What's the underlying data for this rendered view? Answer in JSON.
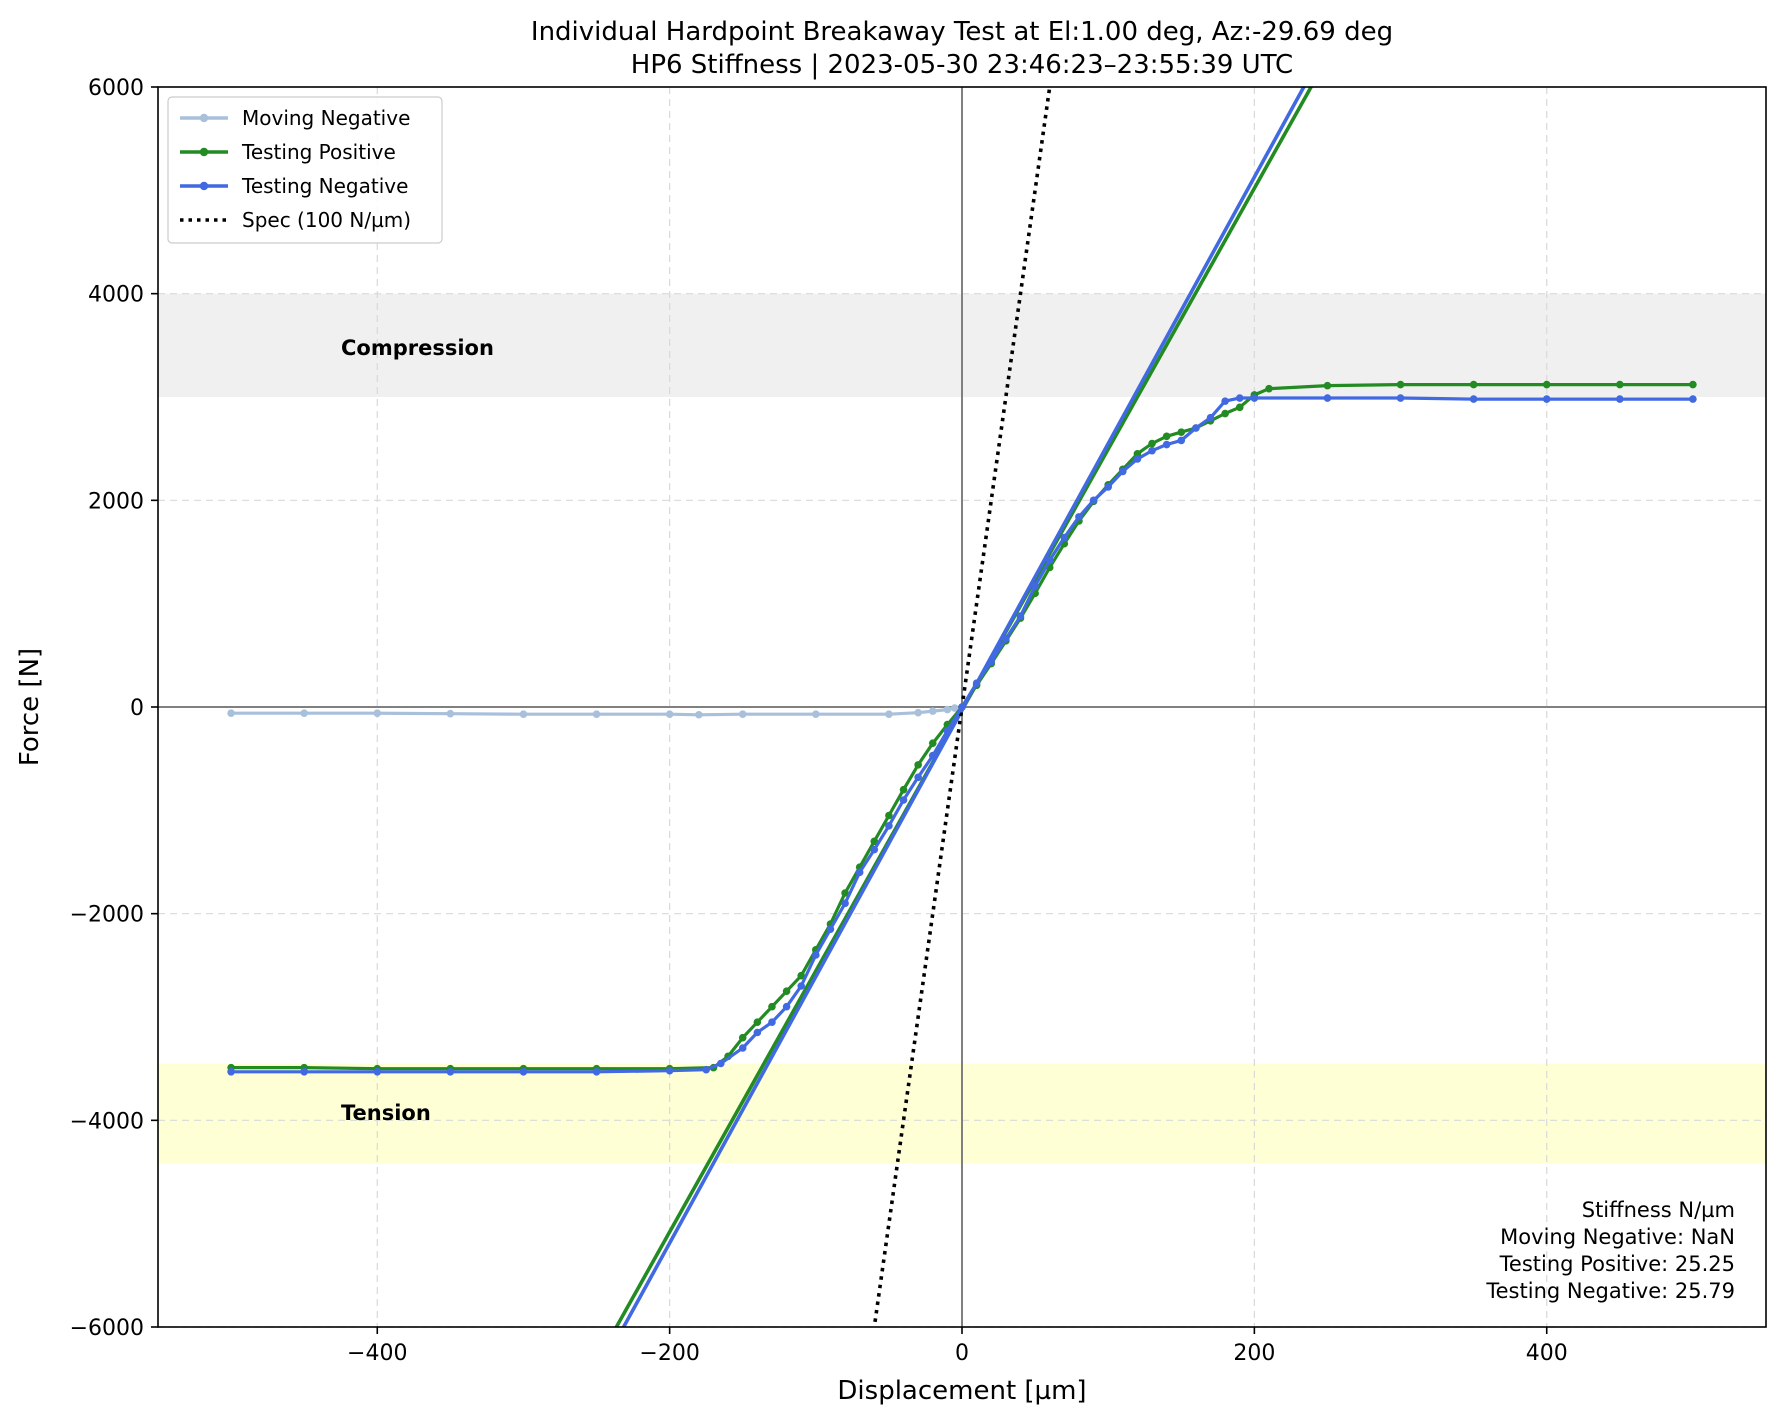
{
  "chart_data": {
    "type": "line",
    "title": "Individual Hardpoint Breakaway Test at El:1.00 deg, Az:-29.69 deg",
    "subtitle": "HP6 Stiffness | 2023-05-30 23:46:23–23:55:39 UTC",
    "xlabel": "Displacement [µm]",
    "ylabel": "Force [N]",
    "xlim": [
      -550,
      550
    ],
    "ylim": [
      -6000,
      6000
    ],
    "xticks": [
      -400,
      -200,
      0,
      200,
      400
    ],
    "yticks": [
      -6000,
      -4000,
      -2000,
      0,
      2000,
      4000,
      6000
    ],
    "xtick_labels": [
      "−400",
      "−200",
      "0",
      "200",
      "400"
    ],
    "ytick_labels": [
      "−6000",
      "−4000",
      "−2000",
      "0",
      "2000",
      "4000",
      "6000"
    ],
    "grid": true,
    "legend_position": "top-left",
    "bands": [
      {
        "label": "Compression",
        "y0": 3000,
        "y1": 4000,
        "color": "#f0f0f0"
      },
      {
        "label": "Tension",
        "y0": -4420,
        "y1": -3450,
        "color": "#ffffd6"
      }
    ],
    "series": [
      {
        "name": "Moving Negative",
        "color": "#a9c0da",
        "x": [
          -500,
          -450,
          -400,
          -350,
          -300,
          -250,
          -200,
          -180,
          -150,
          -100,
          -50,
          -30,
          -20,
          -10,
          -5
        ],
        "y": [
          -60,
          -60,
          -60,
          -65,
          -70,
          -70,
          -70,
          -75,
          -70,
          -70,
          -70,
          -55,
          -40,
          -25,
          -10
        ]
      },
      {
        "name": "Testing Positive",
        "color": "#228b22",
        "x": [
          -500,
          -450,
          -400,
          -350,
          -300,
          -250,
          -200,
          -170,
          -160,
          -150,
          -140,
          -130,
          -120,
          -110,
          -100,
          -90,
          -80,
          -70,
          -60,
          -50,
          -40,
          -30,
          -20,
          -10,
          0,
          10,
          20,
          30,
          40,
          50,
          60,
          70,
          80,
          90,
          100,
          110,
          120,
          130,
          140,
          150,
          160,
          170,
          180,
          190,
          200,
          210,
          250,
          300,
          350,
          400,
          450,
          500
        ],
        "y": [
          -3490,
          -3490,
          -3500,
          -3500,
          -3500,
          -3500,
          -3500,
          -3490,
          -3380,
          -3200,
          -3050,
          -2900,
          -2750,
          -2600,
          -2350,
          -2100,
          -1800,
          -1550,
          -1300,
          -1050,
          -800,
          -560,
          -350,
          -170,
          0,
          210,
          420,
          640,
          860,
          1100,
          1350,
          1580,
          1800,
          1990,
          2150,
          2300,
          2450,
          2550,
          2620,
          2660,
          2700,
          2770,
          2840,
          2900,
          3020,
          3080,
          3110,
          3120,
          3120,
          3120,
          3120,
          3120
        ]
      },
      {
        "name": "Testing Negative",
        "color": "#4169e1",
        "x": [
          -500,
          -450,
          -400,
          -350,
          -300,
          -250,
          -200,
          -175,
          -165,
          -150,
          -140,
          -130,
          -120,
          -110,
          -100,
          -90,
          -80,
          -70,
          -60,
          -50,
          -40,
          -30,
          -20,
          -10,
          0,
          10,
          20,
          30,
          40,
          50,
          60,
          70,
          80,
          90,
          100,
          110,
          120,
          130,
          140,
          150,
          160,
          170,
          180,
          190,
          200,
          250,
          300,
          350,
          400,
          450,
          500
        ],
        "y": [
          -3530,
          -3530,
          -3530,
          -3530,
          -3530,
          -3530,
          -3520,
          -3510,
          -3450,
          -3300,
          -3150,
          -3050,
          -2900,
          -2700,
          -2400,
          -2150,
          -1900,
          -1600,
          -1380,
          -1150,
          -900,
          -680,
          -470,
          -230,
          0,
          230,
          440,
          660,
          880,
          1170,
          1420,
          1640,
          1840,
          2000,
          2130,
          2280,
          2400,
          2480,
          2540,
          2580,
          2700,
          2800,
          2960,
          2990,
          2990,
          2990,
          2990,
          2980,
          2980,
          2980,
          2980
        ]
      }
    ],
    "fit_lines": [
      {
        "name": "Testing Positive fit",
        "color": "#228b22",
        "slope": 25.25,
        "intercept": -30
      },
      {
        "name": "Testing Negative fit",
        "color": "#4169e1",
        "slope": 25.79,
        "intercept": -30
      }
    ],
    "spec_line": {
      "name": "Spec (100 N/µm)",
      "slope": 100,
      "intercept": 0,
      "color": "#000000"
    },
    "legend": [
      {
        "label": "Moving Negative",
        "color": "#a9c0da",
        "style": "solid-dot"
      },
      {
        "label": "Testing Positive",
        "color": "#228b22",
        "style": "solid-dot"
      },
      {
        "label": "Testing Negative",
        "color": "#4169e1",
        "style": "solid-dot"
      },
      {
        "label": "Spec (100 N/µm)",
        "color": "#000000",
        "style": "dotted"
      }
    ],
    "stats": {
      "heading": "Stiffness N/µm",
      "lines": [
        "Moving Negative:  NaN",
        "Testing Positive: 25.25",
        "Testing Negative: 25.79"
      ]
    }
  }
}
